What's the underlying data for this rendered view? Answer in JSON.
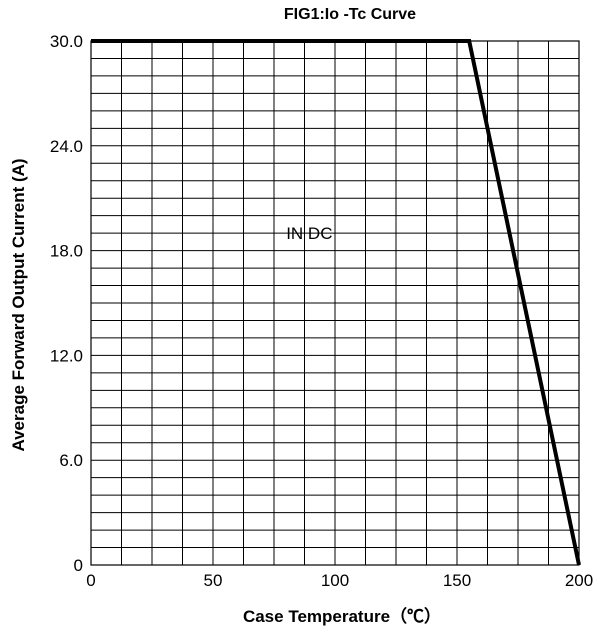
{
  "chart_data": {
    "type": "line",
    "title": "FIG1:Io -Tc Curve",
    "xlabel": "Case Temperature（℃）",
    "ylabel": "Average Forward Output Current (A)",
    "xlim": [
      0,
      200
    ],
    "ylim": [
      0,
      30
    ],
    "x_ticks": [
      "0",
      "50",
      "100",
      "150",
      "200"
    ],
    "y_ticks": [
      "0",
      "6.0",
      "12.0",
      "18.0",
      "24.0",
      "30.0"
    ],
    "grid": true,
    "annotations": [
      {
        "text": "IN DC",
        "x": 80,
        "y": 19
      }
    ],
    "series": [
      {
        "x": [
          0,
          155,
          200
        ],
        "y": [
          30,
          30,
          0
        ],
        "color": "#000000"
      }
    ]
  }
}
